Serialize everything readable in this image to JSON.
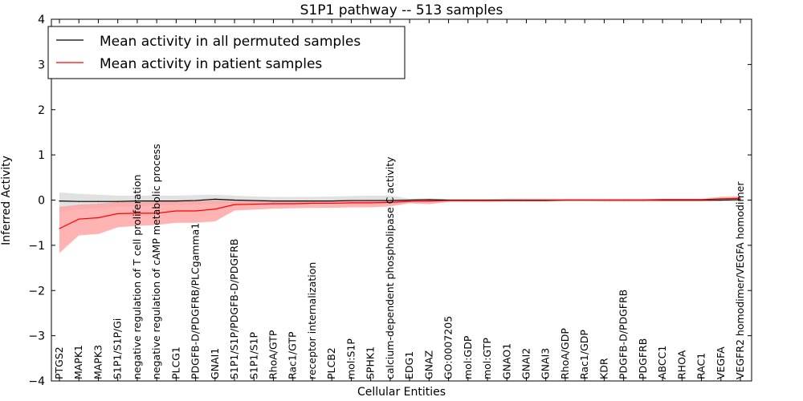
{
  "chart_data": {
    "type": "line",
    "title": "S1P1 pathway -- 513 samples",
    "xlabel": "Cellular Entities",
    "ylabel": "Inferred Activity",
    "ylim": [
      -4,
      4
    ],
    "yticks": [
      "−4",
      "−3",
      "−2",
      "−1",
      "0",
      "1",
      "2",
      "3",
      "4"
    ],
    "legend_placement": "top-left",
    "categories": [
      "PTGS2",
      "MAPK1",
      "MAPK3",
      "S1P1/S1P/Gi",
      "negative regulation of T cell proliferation",
      "negative regulation of cAMP metabolic process",
      "PLCG1",
      "PDGFB-D/PDGFRB/PLCgamma1",
      "GNAI1",
      "S1P1/S1P/PDGFB-D/PDGFRB",
      "S1P1/S1P",
      "RhoA/GTP",
      "Rac1/GTP",
      "receptor internalization",
      "PLCB2",
      "mol:S1P",
      "SPHK1",
      "calcium-dependent phospholipase C activity",
      "EDG1",
      "GNAZ",
      "GO:0007205",
      "mol:GDP",
      "mol:GTP",
      "GNAO1",
      "GNAI2",
      "GNAI3",
      "RhoA/GDP",
      "Rac1/GDP",
      "KDR",
      "PDGFB-D/PDGFRB",
      "PDGFRB",
      "ABCC1",
      "RHOA",
      "RAC1",
      "VEGFA",
      "VEGFR2 homodimer/VEGFA homodimer"
    ],
    "series": [
      {
        "name": "Mean activity in all permuted samples",
        "color": "#000000",
        "band_color": "#c8c8c8",
        "values": [
          -0.02,
          -0.03,
          -0.03,
          -0.03,
          -0.02,
          -0.02,
          -0.02,
          -0.01,
          0.02,
          0.0,
          -0.01,
          -0.02,
          -0.02,
          -0.02,
          -0.02,
          -0.01,
          -0.01,
          -0.01,
          0.0,
          0.01,
          0.0,
          0.0,
          0.0,
          0.0,
          0.0,
          0.0,
          0.0,
          0.0,
          0.0,
          0.0,
          0.0,
          0.0,
          0.0,
          0.0,
          0.0,
          0.01
        ],
        "band_low": [
          -0.25,
          -0.2,
          -0.18,
          -0.15,
          -0.13,
          -0.12,
          -0.11,
          -0.1,
          -0.08,
          -0.09,
          -0.1,
          -0.1,
          -0.1,
          -0.09,
          -0.09,
          -0.09,
          -0.09,
          -0.08,
          -0.03,
          -0.04,
          -0.02,
          -0.02,
          -0.02,
          -0.02,
          -0.03,
          -0.03,
          -0.02,
          -0.02,
          -0.04,
          -0.04,
          -0.04,
          -0.04,
          -0.04,
          -0.04,
          -0.03,
          -0.03
        ],
        "band_high": [
          0.17,
          0.14,
          0.12,
          0.1,
          0.1,
          0.1,
          0.1,
          0.11,
          0.12,
          0.1,
          0.08,
          0.07,
          0.07,
          0.07,
          0.08,
          0.09,
          0.1,
          0.1,
          0.03,
          0.04,
          0.02,
          0.02,
          0.02,
          0.04,
          0.04,
          0.04,
          0.03,
          0.03,
          0.03,
          0.03,
          0.03,
          0.03,
          0.03,
          0.03,
          0.03,
          0.04
        ]
      },
      {
        "name": "Mean activity in patient samples",
        "color": "#ff0000",
        "band_color": "#ff9a9a",
        "values": [
          -0.63,
          -0.42,
          -0.39,
          -0.3,
          -0.29,
          -0.29,
          -0.24,
          -0.24,
          -0.2,
          -0.1,
          -0.09,
          -0.08,
          -0.08,
          -0.07,
          -0.07,
          -0.06,
          -0.06,
          -0.05,
          -0.03,
          -0.02,
          -0.01,
          -0.01,
          -0.01,
          -0.01,
          -0.01,
          -0.01,
          0.0,
          0.0,
          0.0,
          0.0,
          0.0,
          0.01,
          0.01,
          0.01,
          0.03,
          0.04
        ],
        "band_low": [
          -1.17,
          -0.78,
          -0.75,
          -0.6,
          -0.57,
          -0.55,
          -0.5,
          -0.5,
          -0.47,
          -0.23,
          -0.21,
          -0.19,
          -0.18,
          -0.17,
          -0.17,
          -0.16,
          -0.16,
          -0.14,
          -0.07,
          -0.09,
          -0.04,
          -0.04,
          -0.04,
          -0.03,
          -0.03,
          -0.03,
          -0.02,
          -0.02,
          -0.02,
          -0.02,
          -0.02,
          -0.02,
          -0.02,
          -0.02,
          -0.01,
          0.0
        ],
        "band_high": [
          -0.15,
          -0.1,
          -0.08,
          -0.04,
          -0.04,
          -0.03,
          -0.02,
          -0.02,
          -0.01,
          -0.02,
          -0.02,
          -0.02,
          -0.02,
          -0.01,
          -0.01,
          0.0,
          0.0,
          0.01,
          0.01,
          0.02,
          0.01,
          0.01,
          0.01,
          0.01,
          0.01,
          0.01,
          0.02,
          0.02,
          0.02,
          0.02,
          0.02,
          0.03,
          0.03,
          0.03,
          0.07,
          0.08
        ]
      }
    ]
  }
}
